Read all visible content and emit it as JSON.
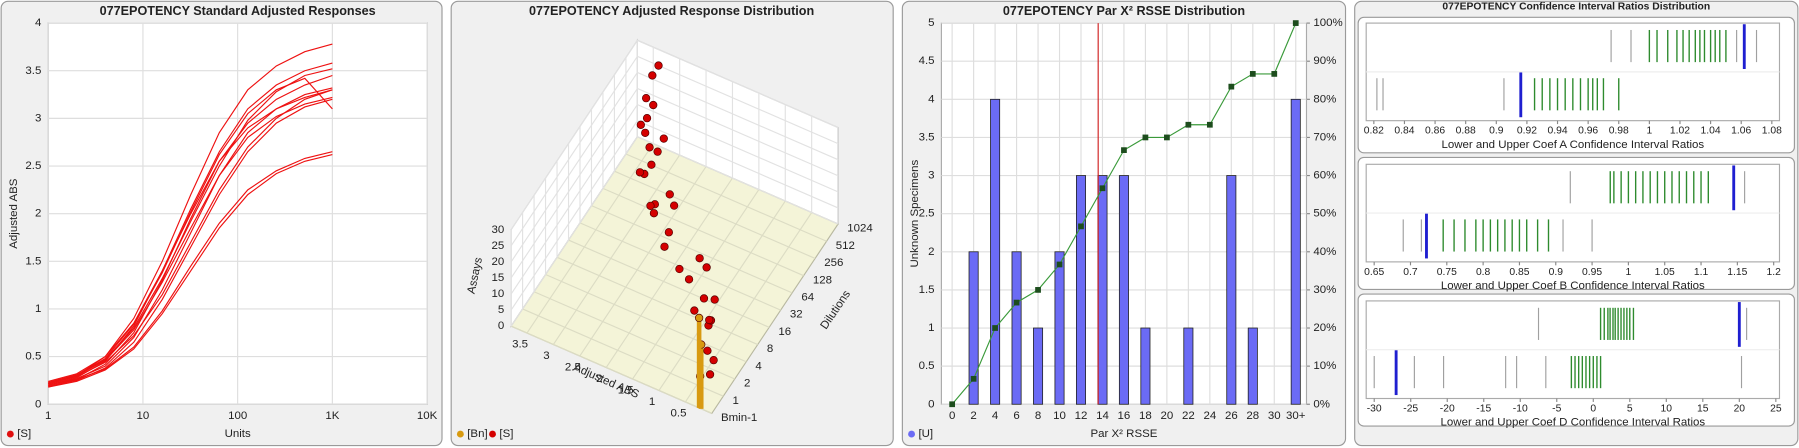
{
  "chart_data": [
    {
      "type": "line",
      "title": "077EPOTENCY Standard Adjusted Responses",
      "xlabel": "Units",
      "ylabel": "Adjusted ABS",
      "log_x": true,
      "grid": true,
      "xlim": [
        1,
        10000
      ],
      "xticks": [
        1,
        10,
        100,
        {
          "value": 1000,
          "label": "1K"
        },
        {
          "value": 10000,
          "label": "10K"
        }
      ],
      "ylim": [
        0,
        4
      ],
      "yticks": [
        0,
        0.5,
        1,
        1.5,
        2,
        2.5,
        3,
        3.5,
        4
      ],
      "legend": {
        "label": "[S]",
        "color": "#e01010"
      },
      "x": [
        1,
        2,
        4,
        8,
        16,
        32,
        64,
        128,
        256,
        512,
        1000
      ],
      "series": [
        {
          "color": "#ee1111",
          "values": [
            0.22,
            0.3,
            0.5,
            0.9,
            1.5,
            2.2,
            2.85,
            3.3,
            3.55,
            3.7,
            3.78
          ]
        },
        {
          "color": "#ee1111",
          "values": [
            0.2,
            0.28,
            0.45,
            0.82,
            1.4,
            2.05,
            2.65,
            3.1,
            3.35,
            3.5,
            3.58
          ]
        },
        {
          "color": "#ee1111",
          "values": [
            0.18,
            0.26,
            0.42,
            0.75,
            1.3,
            1.95,
            2.55,
            2.95,
            3.2,
            3.35,
            3.45
          ]
        },
        {
          "color": "#ee1111",
          "values": [
            0.24,
            0.32,
            0.5,
            0.85,
            1.4,
            2.0,
            2.55,
            2.9,
            3.1,
            3.22,
            3.3
          ]
        },
        {
          "color": "#ee1111",
          "values": [
            0.2,
            0.27,
            0.4,
            0.7,
            1.2,
            1.8,
            2.4,
            2.85,
            3.1,
            3.25,
            3.32
          ]
        },
        {
          "color": "#ee1111",
          "values": [
            0.22,
            0.3,
            0.46,
            0.78,
            1.28,
            1.85,
            2.4,
            2.8,
            3.02,
            3.15,
            3.22
          ]
        },
        {
          "color": "#ee1111",
          "values": [
            0.19,
            0.25,
            0.38,
            0.65,
            1.1,
            1.65,
            2.2,
            2.65,
            2.95,
            3.12,
            3.2
          ]
        },
        {
          "color": "#ee1111",
          "values": [
            0.21,
            0.29,
            0.44,
            0.72,
            1.15,
            1.7,
            2.25,
            2.7,
            3.0,
            3.2,
            3.3
          ]
        },
        {
          "color": "#ee1111",
          "values": [
            0.23,
            0.31,
            0.47,
            0.8,
            1.32,
            1.92,
            2.5,
            2.98,
            3.28,
            3.45,
            3.52
          ]
        },
        {
          "color": "#ee1111",
          "values": [
            0.2,
            0.26,
            0.37,
            0.6,
            0.98,
            1.45,
            1.9,
            2.25,
            2.45,
            2.58,
            2.65
          ]
        },
        {
          "color": "#ee1111",
          "values": [
            0.18,
            0.24,
            0.36,
            0.58,
            0.95,
            1.4,
            1.85,
            2.2,
            2.42,
            2.55,
            2.62
          ]
        },
        {
          "color": "#ee1111",
          "values": [
            0.22,
            0.3,
            0.48,
            0.84,
            1.38,
            2.02,
            2.62,
            3.05,
            3.3,
            3.42,
            3.1
          ]
        }
      ]
    },
    {
      "type": "scatter3d",
      "title": "077EPOTENCY Adjusted Response Distribution",
      "xlabel": "Adjusted ABS",
      "ylabel": "Dilutions",
      "zlabel": "Assays",
      "xlim": [
        0,
        3.8
      ],
      "xticks": [
        0.5,
        1,
        1.5,
        2,
        2.5,
        3,
        3.5
      ],
      "categories": [
        "Bmin-1",
        "1",
        "2",
        "4",
        "8",
        "16",
        "32",
        "64",
        "128",
        "256",
        "512",
        "1024"
      ],
      "zlim": [
        0,
        30
      ],
      "zticks": [
        0,
        5,
        10,
        15,
        20,
        25,
        30
      ],
      "series": [
        {
          "name": "[Bn]",
          "color": "#d89a10",
          "y": [
            "Bmin-1",
            "Bmin-1",
            "Bmin-1"
          ],
          "x": [
            0.22,
            0.2,
            0.24
          ],
          "z": [
            10,
            20,
            28
          ]
        },
        {
          "name": "[S]",
          "color": "#d40000",
          "y": [
            "1",
            "1",
            "1",
            "2",
            "2",
            "2",
            "4",
            "4",
            "4",
            "8",
            "8",
            "8",
            "16",
            "16",
            "16",
            "32",
            "32",
            "32",
            "64",
            "64",
            "64",
            "128",
            "128",
            "128",
            "256",
            "256",
            "256",
            "512",
            "512",
            "512",
            "1024",
            "1024",
            "1024"
          ],
          "x": [
            0.25,
            0.3,
            0.28,
            0.4,
            0.45,
            0.38,
            0.7,
            0.8,
            0.75,
            1.2,
            1.3,
            1.1,
            1.7,
            1.9,
            1.8,
            2.2,
            2.4,
            2.1,
            2.6,
            2.8,
            2.7,
            2.9,
            3.1,
            3.0,
            3.1,
            3.3,
            3.2,
            3.2,
            3.4,
            3.3,
            3.3,
            3.5,
            3.4
          ],
          "z": [
            5,
            12,
            20,
            3,
            15,
            22,
            8,
            14,
            24,
            2,
            11,
            19,
            6,
            16,
            25,
            4,
            13,
            21,
            9,
            17,
            26,
            1,
            10,
            23,
            7,
            18,
            27,
            5,
            14,
            28,
            3,
            12,
            25
          ]
        }
      ]
    },
    {
      "type": "bar",
      "title": "077EPOTENCY Par X² RSSE Distribution",
      "xlabel": "Par X² RSSE",
      "ylabel": "Unknown Specimens",
      "categories": [
        "0",
        "2",
        "4",
        "6",
        "8",
        "10",
        "12",
        "14",
        "16",
        "18",
        "20",
        "22",
        "24",
        "26",
        "28",
        "30",
        "30+"
      ],
      "ylim": [
        0,
        5
      ],
      "yticks": [
        0,
        0.5,
        1,
        1.5,
        2,
        2.5,
        3,
        3.5,
        4,
        4.5,
        5
      ],
      "y2lim": [
        0,
        100
      ],
      "y2ticks": [
        {
          "value": 0,
          "label": "0%"
        },
        {
          "value": 10,
          "label": "10%"
        },
        {
          "value": 20,
          "label": "20%"
        },
        {
          "value": 30,
          "label": "30%"
        },
        {
          "value": 40,
          "label": "40%"
        },
        {
          "value": 50,
          "label": "50%"
        },
        {
          "value": 60,
          "label": "60%"
        },
        {
          "value": 70,
          "label": "70%"
        },
        {
          "value": 80,
          "label": "80%"
        },
        {
          "value": 90,
          "label": "90%"
        },
        {
          "value": 100,
          "label": "100%"
        }
      ],
      "grid": true,
      "reference_x": 13.6,
      "reference_color": "#d02020",
      "series": [
        {
          "name": "[U]",
          "color": "#6b6bf5",
          "values": [
            0,
            2,
            4,
            2,
            1,
            2,
            3,
            3,
            3,
            1,
            0,
            1,
            0,
            3,
            1,
            0,
            4
          ]
        },
        {
          "color": "#3a9a3a",
          "axis": "y2",
          "values": [
            0,
            6.67,
            20,
            26.67,
            30,
            36.67,
            46.67,
            56.67,
            66.67,
            70,
            70,
            73.33,
            73.33,
            83.33,
            86.67,
            86.67,
            100
          ]
        }
      ]
    },
    {
      "type": "strip",
      "title": "077EPOTENCY Confidence Interval Ratios Distribution",
      "colors": {
        "values": "#2e8b2e",
        "others": "#a0a0a0",
        "reference": "#1f1fd0"
      },
      "panels": [
        {
          "xlabel": "Lower and Upper Coef A Confidence Interval Ratios",
          "xlim": [
            0.815,
            1.085
          ],
          "xticks": [
            0.82,
            0.84,
            0.86,
            0.88,
            0.9,
            0.92,
            0.94,
            0.96,
            0.98,
            1,
            1.02,
            1.04,
            1.06,
            1.08
          ],
          "rows": [
            {
              "values": [
                1.0,
                1.005,
                1.012,
                1.018,
                1.022,
                1.026,
                1.03,
                1.033,
                1.036,
                1.04,
                1.043,
                1.046,
                1.05
              ],
              "others": [
                0.975,
                0.988,
                1.057,
                1.07
              ],
              "reference": 1.062
            },
            {
              "values": [
                0.925,
                0.93,
                0.935,
                0.94,
                0.945,
                0.95,
                0.955,
                0.96,
                0.963,
                0.966,
                0.97,
                0.98
              ],
              "others": [
                0.822,
                0.826,
                0.905
              ],
              "reference": 0.916
            }
          ]
        },
        {
          "xlabel": "Lower and Upper Coef B Confidence Interval Ratios",
          "xlim": [
            0.639,
            1.208
          ],
          "xticks": [
            0.65,
            0.7,
            0.75,
            0.8,
            0.85,
            0.9,
            0.95,
            1,
            1.05,
            1.1,
            1.15,
            1.2
          ],
          "rows": [
            {
              "values": [
                0.975,
                0.98,
                0.99,
                1.0,
                1.01,
                1.02,
                1.03,
                1.04,
                1.05,
                1.06,
                1.07,
                1.08,
                1.09,
                1.1,
                1.11
              ],
              "others": [
                0.92,
                1.16
              ],
              "reference": 1.145
            },
            {
              "values": [
                0.745,
                0.76,
                0.775,
                0.79,
                0.8,
                0.81,
                0.82,
                0.83,
                0.84,
                0.85,
                0.86,
                0.875,
                0.89
              ],
              "others": [
                0.69,
                0.715,
                0.91,
                0.95
              ],
              "reference": 0.722
            }
          ]
        },
        {
          "xlabel": "Lower and Upper Coef D Confidence Interval Ratios",
          "xlim": [
            -31.1,
            25.5
          ],
          "xticks": [
            -30,
            -25,
            -20,
            -15,
            -10,
            -5,
            0,
            5,
            10,
            15,
            20,
            25
          ],
          "rows": [
            {
              "values": [
                1,
                1.5,
                2,
                2.3,
                2.7,
                3,
                3.4,
                3.8,
                4.2,
                4.6,
                5,
                5.5
              ],
              "others": [
                -7.5,
                21
              ],
              "reference": 20
            },
            {
              "values": [
                -3,
                -2.5,
                -2,
                -1.5,
                -1,
                -0.5,
                0,
                0.5,
                1
              ],
              "others": [
                -30,
                -24.5,
                -20.5,
                -12,
                -10.5,
                -6.5,
                20.3
              ],
              "reference": -27
            }
          ]
        }
      ]
    }
  ]
}
